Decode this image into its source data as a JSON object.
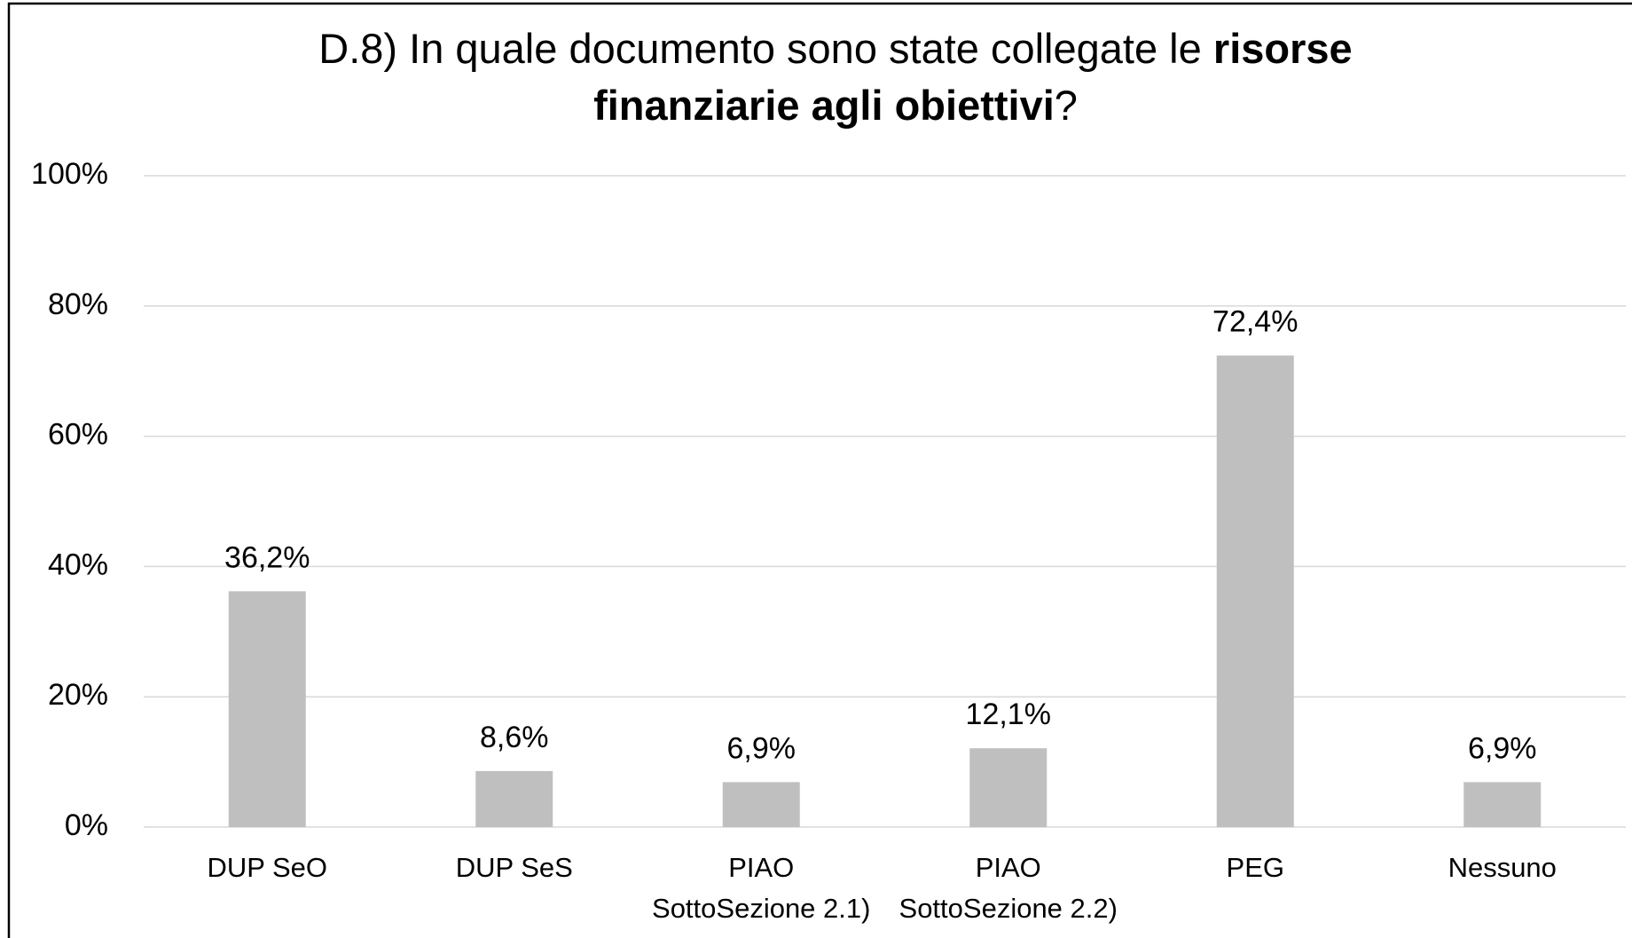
{
  "chart_data": {
    "type": "bar",
    "title": [
      [
        {
          "text": "D.8) In quale documento sono state collegate le",
          "bold": false
        },
        {
          "text": "risorse",
          "bold": true
        }
      ],
      [
        {
          "text": "finanziarie agli obiettivi",
          "bold": true
        },
        {
          "text": "?",
          "bold": false
        }
      ]
    ],
    "categories": [
      [
        "DUP SeO"
      ],
      [
        "DUP SeS"
      ],
      [
        "PIAO",
        "SottoSezione 2.1)"
      ],
      [
        "PIAO",
        "SottoSezione 2.2)"
      ],
      [
        "PEG"
      ],
      [
        "Nessuno"
      ]
    ],
    "values": [
      36.2,
      8.6,
      6.9,
      12.1,
      72.4,
      6.9
    ],
    "value_labels": [
      "36,2%",
      "8,6%",
      "6,9%",
      "12,1%",
      "72,4%",
      "6,9%"
    ],
    "color": "#bfbfbf",
    "ylim": [
      0,
      100
    ],
    "yticks": [
      {
        "value": 0,
        "label": "0%"
      },
      {
        "value": 20,
        "label": "20%"
      },
      {
        "value": 40,
        "label": "40%"
      },
      {
        "value": 60,
        "label": "60%"
      },
      {
        "value": 80,
        "label": "80%"
      },
      {
        "value": 100,
        "label": "100%"
      }
    ],
    "grid": true
  }
}
